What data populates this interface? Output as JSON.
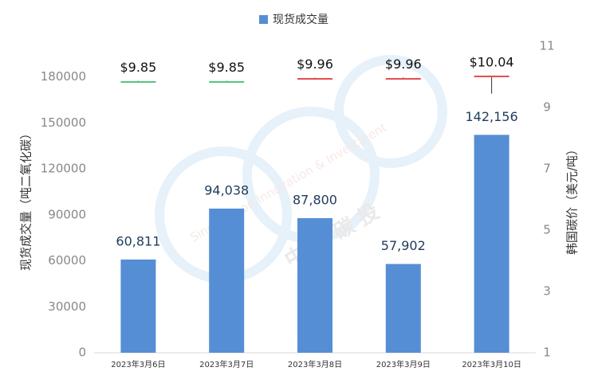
{
  "chart_data": {
    "type": "bar",
    "categories": [
      "2023年3月6日",
      "2023年3月7日",
      "2023年3月8日",
      "2023年3月9日",
      "2023年3月10日"
    ],
    "series": [
      {
        "name": "现货成交量",
        "type": "bar",
        "color": "#558ed5",
        "values": [
          60811,
          94038,
          87800,
          57902,
          142156
        ],
        "value_labels": [
          "60,811",
          "94,038",
          "87,800",
          "57,902",
          "142,156"
        ]
      },
      {
        "type": "candlestick",
        "axis": "y2",
        "up_color": "#e84c4c",
        "down_color": "#4fc27a",
        "open": [
          9.86,
          9.86,
          9.95,
          9.93,
          10.03
        ],
        "high": [
          9.87,
          9.87,
          9.97,
          9.98,
          10.04
        ],
        "low": [
          9.83,
          9.84,
          9.94,
          9.92,
          9.45
        ],
        "close": [
          9.85,
          9.85,
          9.96,
          9.96,
          10.04
        ],
        "value_labels": [
          "$9.85",
          "$9.85",
          "$9.96",
          "$9.96",
          "$10.04"
        ]
      }
    ],
    "y_label": "现货成交量（吨二氧化碳）",
    "y2_label": "韩国碳价（美元/吨）",
    "ylim": [
      0,
      200000
    ],
    "yticks": [
      0,
      30000,
      60000,
      90000,
      120000,
      150000,
      180000
    ],
    "y2lim": [
      1,
      11
    ],
    "y2ticks": [
      1,
      3,
      5,
      7,
      9,
      11
    ],
    "legend": "top",
    "watermark": [
      "Sino Carbon Innovation & Investment",
      "中 创 碳 投"
    ]
  }
}
